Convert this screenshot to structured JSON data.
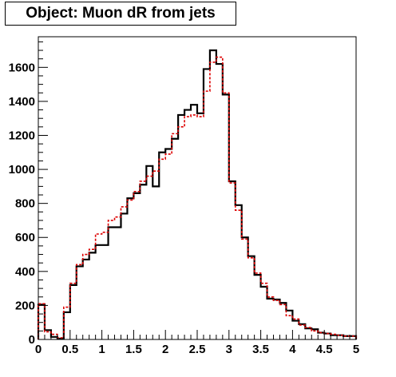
{
  "chart_data": {
    "type": "line",
    "title": "Object: Muon dR from jets",
    "xlabel": "",
    "ylabel": "",
    "xlim": [
      0,
      5
    ],
    "ylim": [
      0,
      1780
    ],
    "grid": false,
    "legend": "none",
    "x_ticks": [
      "0",
      "0.5",
      "1",
      "1.5",
      "2",
      "2.5",
      "3",
      "3.5",
      "4",
      "4.5",
      "5"
    ],
    "y_ticks": [
      "0",
      "200",
      "400",
      "600",
      "800",
      "1000",
      "1200",
      "1400",
      "1600"
    ],
    "bin_edges": [
      0,
      0.1,
      0.2,
      0.3,
      0.4,
      0.5,
      0.6,
      0.7,
      0.8,
      0.9,
      1.0,
      1.1,
      1.2,
      1.3,
      1.4,
      1.5,
      1.6,
      1.7,
      1.8,
      1.9,
      2.0,
      2.1,
      2.2,
      2.3,
      2.4,
      2.5,
      2.6,
      2.7,
      2.8,
      2.9,
      3.0,
      3.1,
      3.2,
      3.3,
      3.4,
      3.5,
      3.6,
      3.7,
      3.8,
      3.9,
      4.0,
      4.1,
      4.2,
      4.3,
      4.4,
      4.5,
      4.6,
      4.7,
      4.8,
      4.9,
      5.0
    ],
    "series": [
      {
        "style": "solid",
        "color": "#000000",
        "values": [
          205,
          55,
          15,
          5,
          160,
          320,
          430,
          470,
          510,
          555,
          555,
          660,
          660,
          740,
          830,
          860,
          910,
          1020,
          900,
          1100,
          1120,
          1180,
          1320,
          1350,
          1380,
          1330,
          1590,
          1700,
          1620,
          1440,
          930,
          790,
          600,
          490,
          380,
          310,
          240,
          235,
          215,
          170,
          110,
          90,
          65,
          60,
          40,
          35,
          25,
          25,
          20,
          20
        ]
      },
      {
        "style": "dashed",
        "color": "#dd0000",
        "values": [
          210,
          45,
          30,
          10,
          190,
          330,
          440,
          500,
          530,
          620,
          630,
          700,
          720,
          780,
          820,
          870,
          930,
          960,
          990,
          1060,
          1090,
          1210,
          1250,
          1310,
          1320,
          1310,
          1460,
          1630,
          1660,
          1450,
          920,
          760,
          590,
          480,
          390,
          330,
          250,
          230,
          205,
          140,
          120,
          85,
          70,
          50,
          40,
          35,
          30,
          25,
          20,
          20
        ]
      }
    ]
  }
}
